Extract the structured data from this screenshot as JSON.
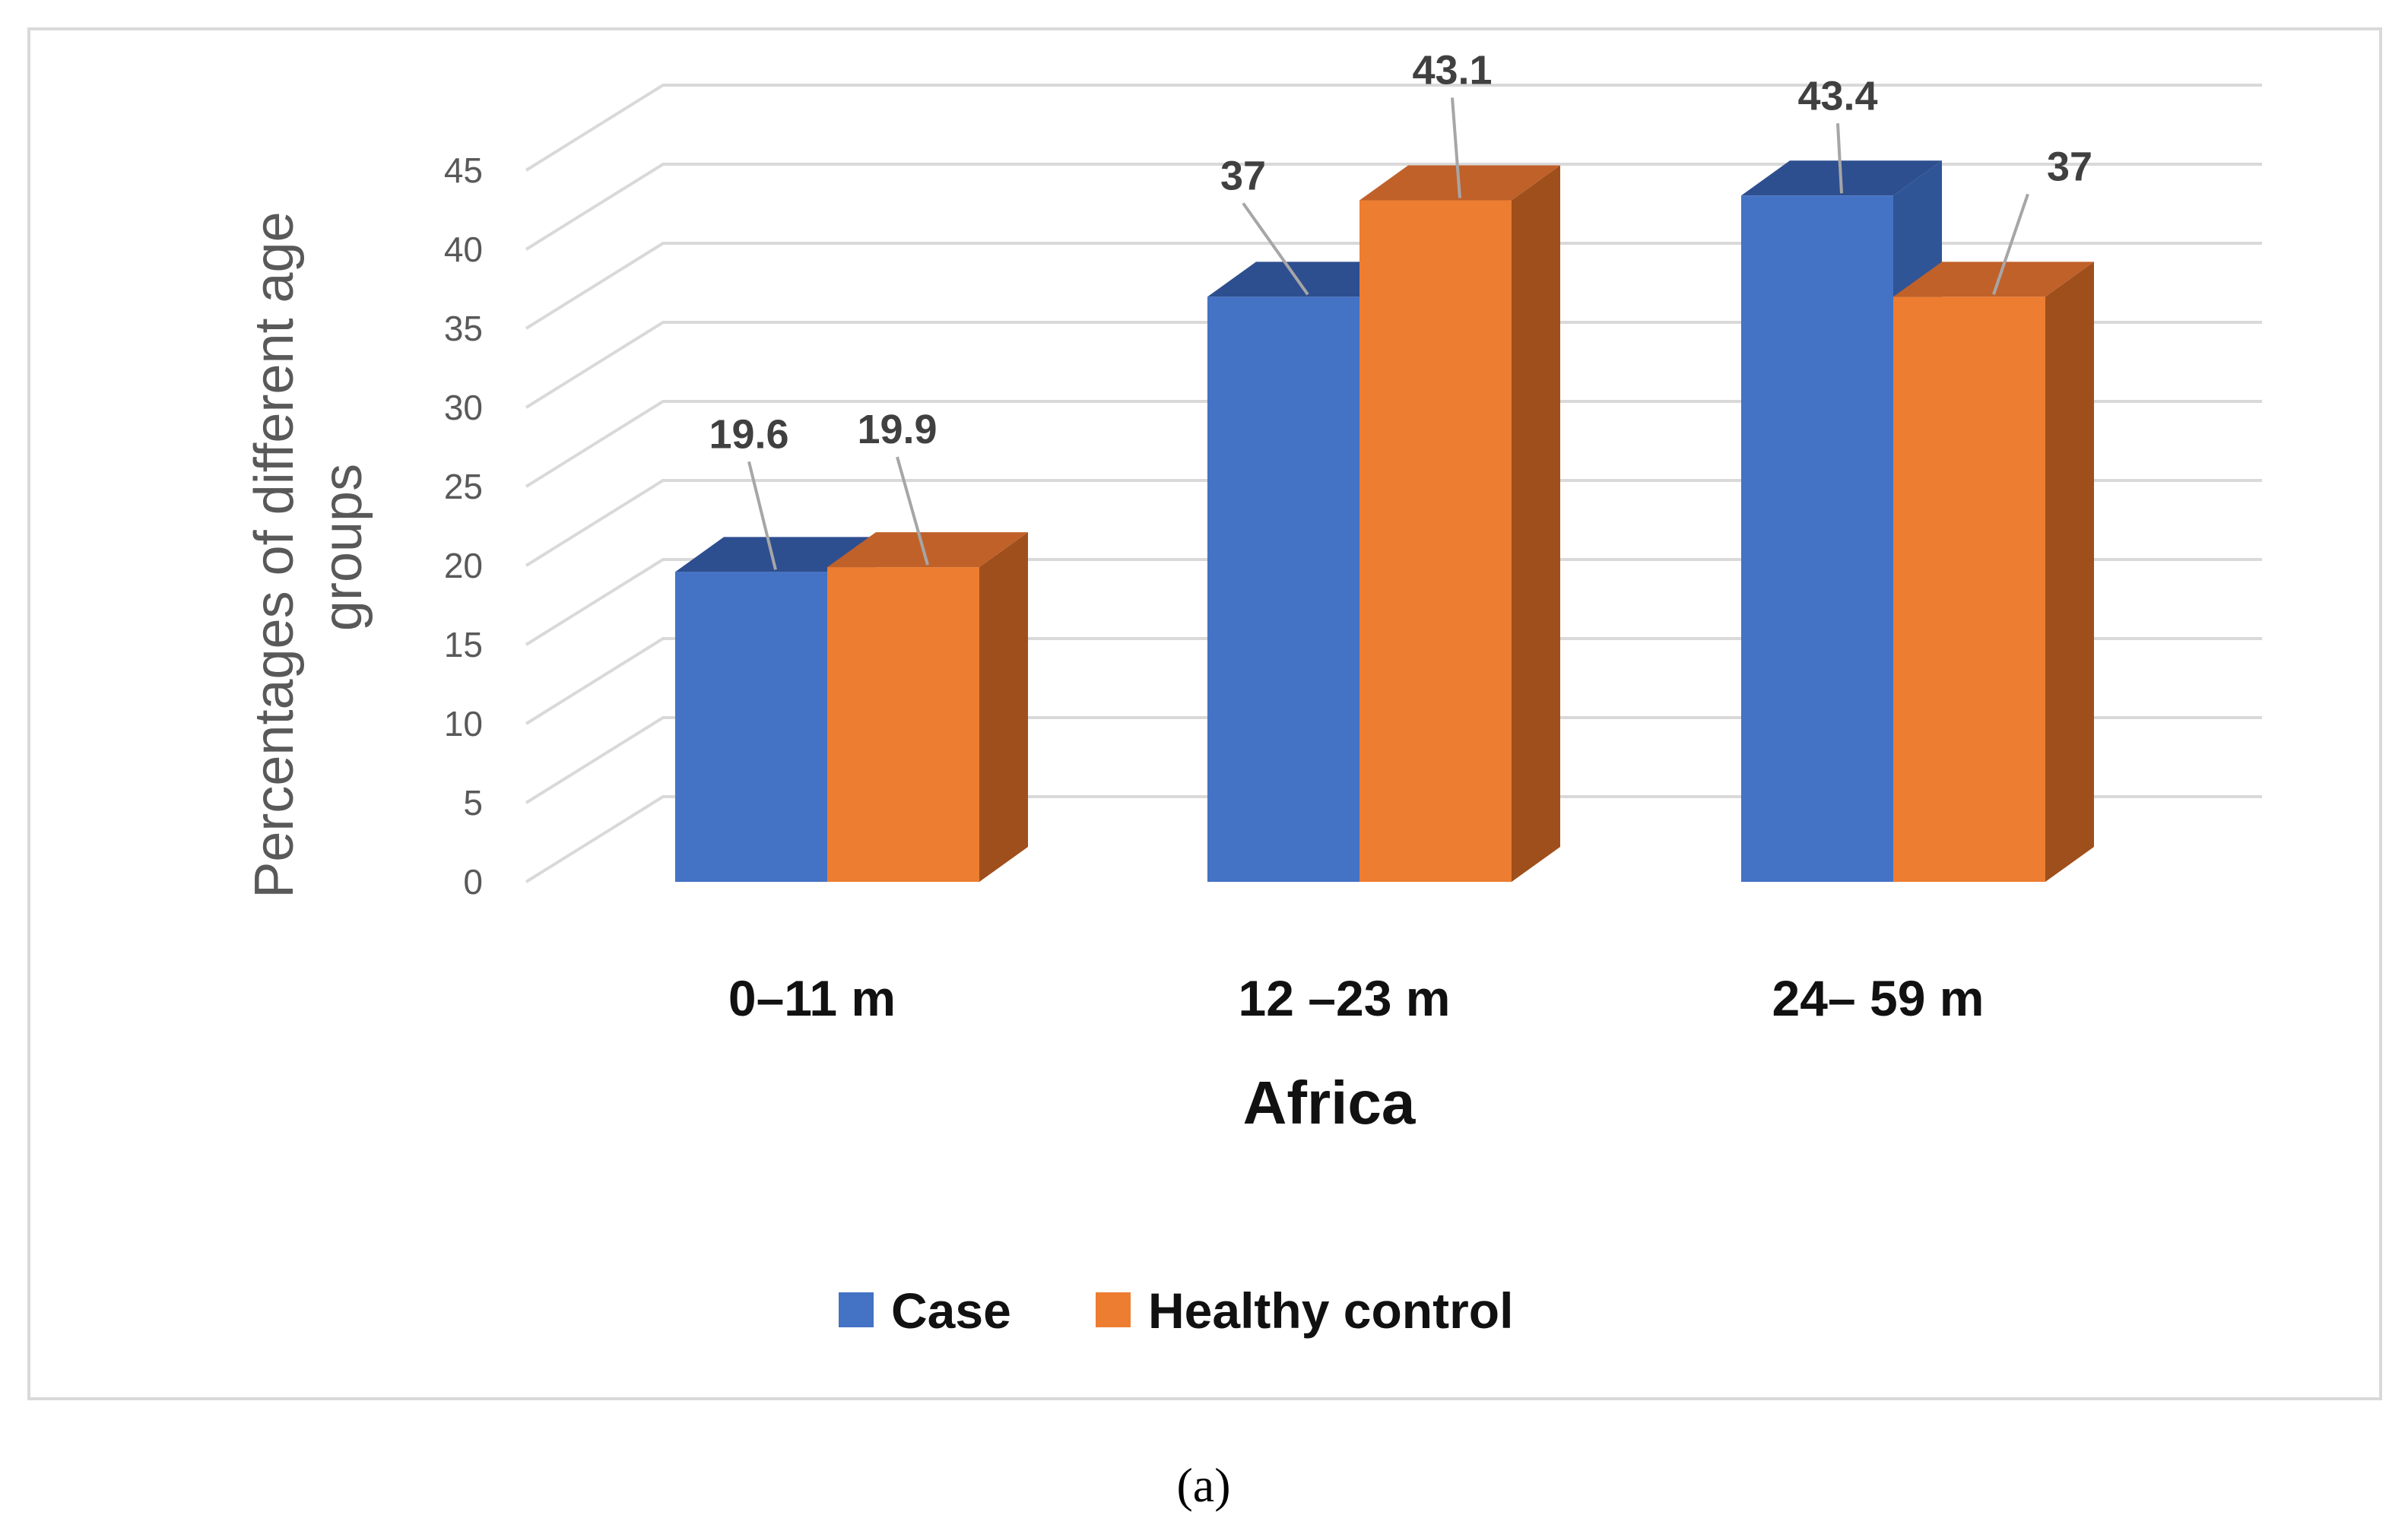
{
  "chart_data": {
    "type": "bar",
    "title": "",
    "xlabel": "Africa",
    "ylabel": "Percentages of different age groups",
    "ylabel_lines": [
      "Percentages of different age",
      "groups"
    ],
    "ylim": [
      0,
      45
    ],
    "yticks": [
      "0",
      "5",
      "10",
      "15",
      "20",
      "25",
      "30",
      "35",
      "40",
      "45"
    ],
    "categories": [
      "0–11 m",
      "12 –23 m",
      "24– 59 m"
    ],
    "series": [
      {
        "name": "Case",
        "values": [
          19.6,
          37,
          43.4
        ],
        "labels": [
          "19.6",
          "37",
          "43.4"
        ],
        "color": "#4472C4",
        "side_color": "#2F5597",
        "top_color": "#2E4F8F"
      },
      {
        "name": "Healthy control",
        "values": [
          19.9,
          43.1,
          37
        ],
        "labels": [
          "19.9",
          "43.1",
          "37"
        ],
        "color": "#ED7D31",
        "side_color": "#9E4F1B",
        "top_color": "#C0612A"
      }
    ],
    "grid": true,
    "legend": "bottom",
    "panel_label": "(a)"
  }
}
